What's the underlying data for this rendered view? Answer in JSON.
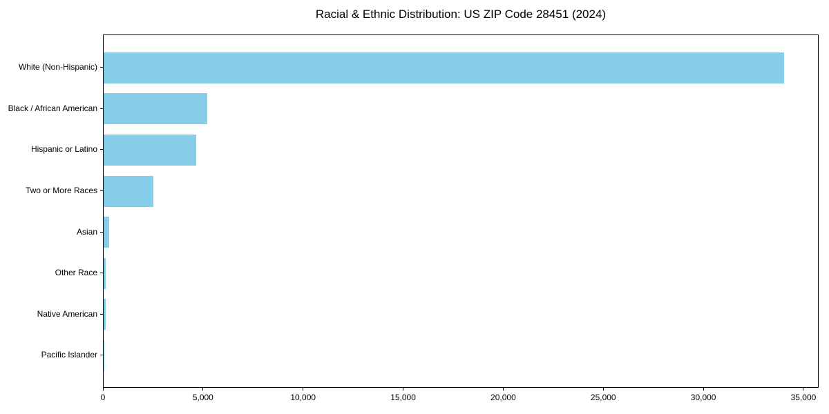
{
  "chart_data": {
    "type": "bar",
    "orientation": "horizontal",
    "title": "Racial & Ethnic Distribution: US ZIP Code 28451 (2024)",
    "categories": [
      "White (Non-Hispanic)",
      "Black / African American",
      "Hispanic or Latino",
      "Two or More Races",
      "Asian",
      "Other Race",
      "Native American",
      "Pacific Islander"
    ],
    "values": [
      34050,
      5200,
      4650,
      2490,
      280,
      120,
      110,
      15
    ],
    "xlabel": "",
    "ylabel": "",
    "xlim": [
      0,
      35760
    ],
    "xticks": [
      0,
      5000,
      10000,
      15000,
      20000,
      25000,
      30000,
      35000
    ],
    "xtick_labels": [
      "0",
      "5,000",
      "10,000",
      "15,000",
      "20,000",
      "25,000",
      "30,000",
      "35,000"
    ],
    "bar_color": "#87CEEB",
    "grid": false,
    "legend_position": "none"
  }
}
